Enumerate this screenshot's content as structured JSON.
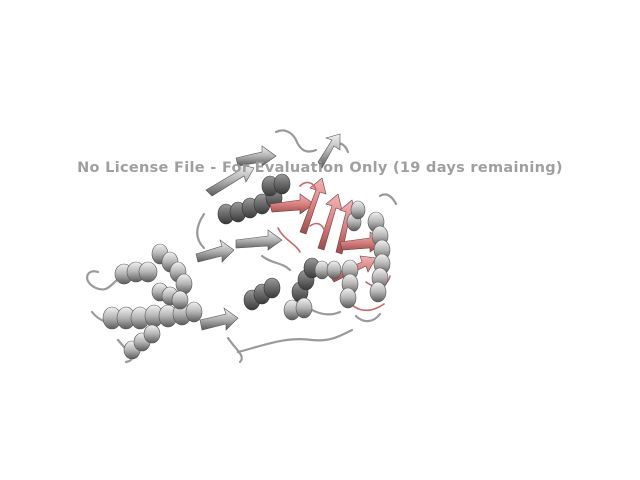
{
  "watermark": {
    "text": "No License File - For Evaluation Only (19 days remaining)"
  },
  "colors": {
    "background": "#ffffff",
    "helix_grey": "#a8a8a8",
    "helix_dark": "#5e5e5e",
    "helix_light": "#e2e2e2",
    "highlight_pink": "#d98282",
    "highlight_dark": "#a85a5a",
    "watermark": "#9a9a9a"
  }
}
